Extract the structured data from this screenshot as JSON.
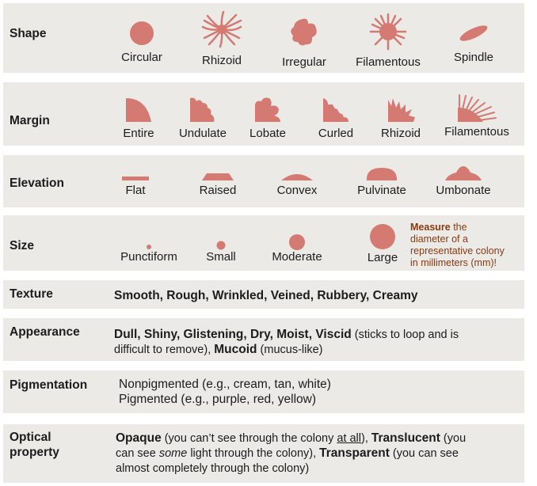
{
  "colors": {
    "colony": "#d47a72",
    "row_bg": "#ebeae7",
    "note": "#8b3a0e"
  },
  "shape": {
    "label": "Shape",
    "items": [
      {
        "name": "Circular",
        "icon": "circular-colony-icon"
      },
      {
        "name": "Rhizoid",
        "icon": "rhizoid-colony-icon"
      },
      {
        "name": "Irregular",
        "icon": "irregular-colony-icon"
      },
      {
        "name": "Filamentous",
        "icon": "filamentous-colony-icon"
      },
      {
        "name": "Spindle",
        "icon": "spindle-colony-icon"
      }
    ]
  },
  "margin": {
    "label": "Margin",
    "items": [
      {
        "name": "Entire",
        "icon": "entire-margin-icon"
      },
      {
        "name": "Undulate",
        "icon": "undulate-margin-icon"
      },
      {
        "name": "Lobate",
        "icon": "lobate-margin-icon"
      },
      {
        "name": "Curled",
        "icon": "curled-margin-icon"
      },
      {
        "name": "Rhizoid",
        "icon": "rhizoid-margin-icon"
      },
      {
        "name": "Filamentous",
        "icon": "filamentous-margin-icon"
      }
    ]
  },
  "elevation": {
    "label": "Elevation",
    "items": [
      {
        "name": "Flat",
        "icon": "flat-elevation-icon"
      },
      {
        "name": "Raised",
        "icon": "raised-elevation-icon"
      },
      {
        "name": "Convex",
        "icon": "convex-elevation-icon"
      },
      {
        "name": "Pulvinate",
        "icon": "pulvinate-elevation-icon"
      },
      {
        "name": "Umbonate",
        "icon": "umbonate-elevation-icon"
      }
    ]
  },
  "size": {
    "label": "Size",
    "items": [
      {
        "name": "Punctiform",
        "icon": "punctiform-size-icon"
      },
      {
        "name": "Small",
        "icon": "small-size-icon"
      },
      {
        "name": "Moderate",
        "icon": "moderate-size-icon"
      },
      {
        "name": "Large",
        "icon": "large-size-icon"
      }
    ],
    "note_bold": "Measure",
    "note_line1": " the",
    "note_line2": "diameter of a",
    "note_line3": "representative colony",
    "note_line4": "in millimeters  (mm)!"
  },
  "texture": {
    "label": "Texture",
    "text": "Smooth, Rough, Wrinkled, Veined, Rubbery, Creamy"
  },
  "appearance": {
    "label": "Appearance",
    "bold1": "Dull, Shiny, Glistening, Dry, Moist, Viscid",
    "normal1": " (sticks to loop and is",
    "normal2": "difficult to remove), ",
    "bold2": "Mucoid",
    "normal3": " (mucus-like)"
  },
  "pigmentation": {
    "label": "Pigmentation",
    "line1": "Nonpigmented (e.g., cream, tan, white)",
    "line2": "Pigmented (e.g., purple, red, yellow)"
  },
  "optical": {
    "label_line1": "Optical",
    "label_line2": "property",
    "opaque": "Opaque",
    "opaque_desc": " (you can’t see through the colony ",
    "opaque_underline": "at all",
    "opaque_end": "), ",
    "translucent": "Translucent",
    "translucent_desc1": " (you",
    "translucent_desc2": "can see ",
    "translucent_some": "some",
    "translucent_desc3": " light through the colony), ",
    "transparent": "Transparent",
    "transparent_desc1": " (you can see",
    "transparent_desc2": "almost completely through the colony)"
  }
}
